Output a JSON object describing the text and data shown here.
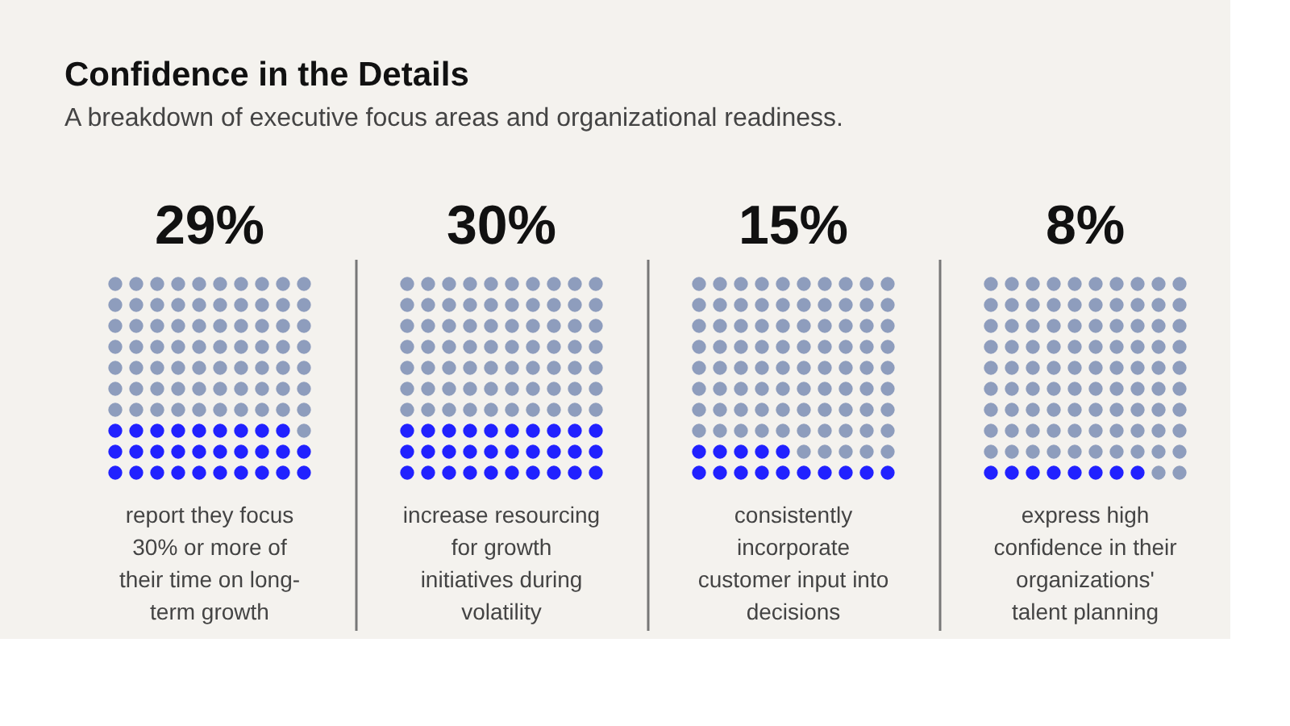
{
  "chart_data": {
    "type": "other",
    "title": "Confidence in the Details",
    "subtitle": "A breakdown of executive focus areas and organizational readiness.",
    "categories": [
      "report they focus 30% or more of their time on long-term growth",
      "increase resourcing for growth initiatives during volatility",
      "consistently incorporate customer input into decisions",
      "express high confidence in their organizations' talent planning"
    ],
    "series": [
      {
        "color": "#2121ff",
        "values": [
          29,
          30,
          15,
          8
        ],
        "value_labels": [
          "29%",
          "30%",
          "15%",
          "8%"
        ]
      }
    ]
  }
}
